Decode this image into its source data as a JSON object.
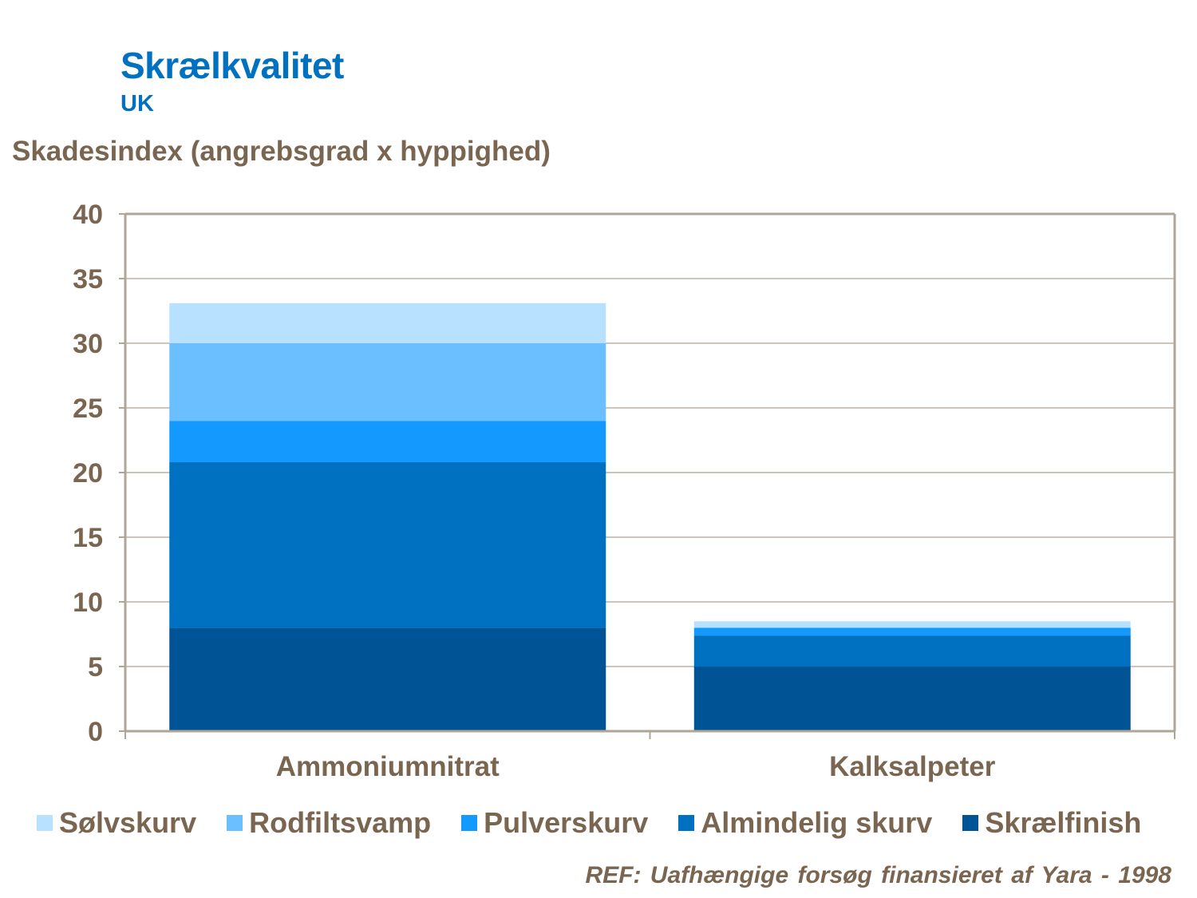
{
  "title": "Skrælkvalitet",
  "subtitle": "UK",
  "reference": "REF: Uafhængige forsøg finansieret af Yara - 1998",
  "chart_data": {
    "type": "bar",
    "stacked": true,
    "ylabel": "Skadesindex (angrebsgrad x hyppighed)",
    "xlabel": "",
    "categories": [
      "Ammoniumnitrat",
      "Kalksalpeter"
    ],
    "ylim": [
      0,
      40
    ],
    "yticks": [
      0,
      5,
      10,
      15,
      20,
      25,
      30,
      35,
      40
    ],
    "grid": true,
    "legend_position": "bottom",
    "series": [
      {
        "name": "Skrælfinish",
        "values": [
          8.0,
          5.0
        ],
        "color": "#005496"
      },
      {
        "name": "Almindelig skurv",
        "values": [
          12.8,
          2.4
        ],
        "color": "#0070c0"
      },
      {
        "name": "Pulverskurv",
        "values": [
          3.2,
          0.6
        ],
        "color": "#1499ff"
      },
      {
        "name": "Rodfiltsvamp",
        "values": [
          6.0,
          0.0
        ],
        "color": "#6bbfff"
      },
      {
        "name": "Sølvskurv",
        "values": [
          3.1,
          0.5
        ],
        "color": "#b8e0ff"
      }
    ],
    "legend_order": [
      "Sølvskurv",
      "Rodfiltsvamp",
      "Pulverskurv",
      "Almindelig skurv",
      "Skrælfinish"
    ]
  }
}
